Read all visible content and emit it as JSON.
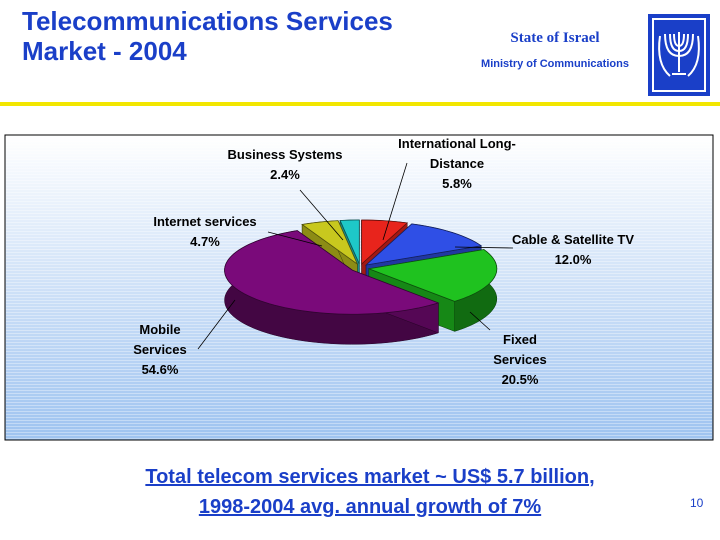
{
  "slide": {
    "title": "Telecommunications Services Market - 2004",
    "org": "State of Israel",
    "ministry": "Ministry of Communications",
    "footer_line1": "Total telecom services market ~ US$ 5.7 billion,",
    "footer_line2": "1998-2004 avg. annual growth of 7%",
    "page": "10"
  },
  "chart_data": {
    "type": "pie",
    "categories": [
      "International Long-Distance",
      "Cable & Satellite TV",
      "Fixed Services",
      "Mobile Services",
      "Internet services",
      "Business Systems"
    ],
    "values": [
      5.8,
      12.0,
      20.5,
      54.6,
      4.7,
      2.4
    ],
    "value_labels": [
      "5.8%",
      "12.0%",
      "20.5%",
      "54.6%",
      "4.7%",
      "2.4%"
    ],
    "colors": [
      "#e8241c",
      "#2f4fe6",
      "#1fc21f",
      "#7a0a7a",
      "#c8c81e",
      "#1ec8c8"
    ]
  }
}
